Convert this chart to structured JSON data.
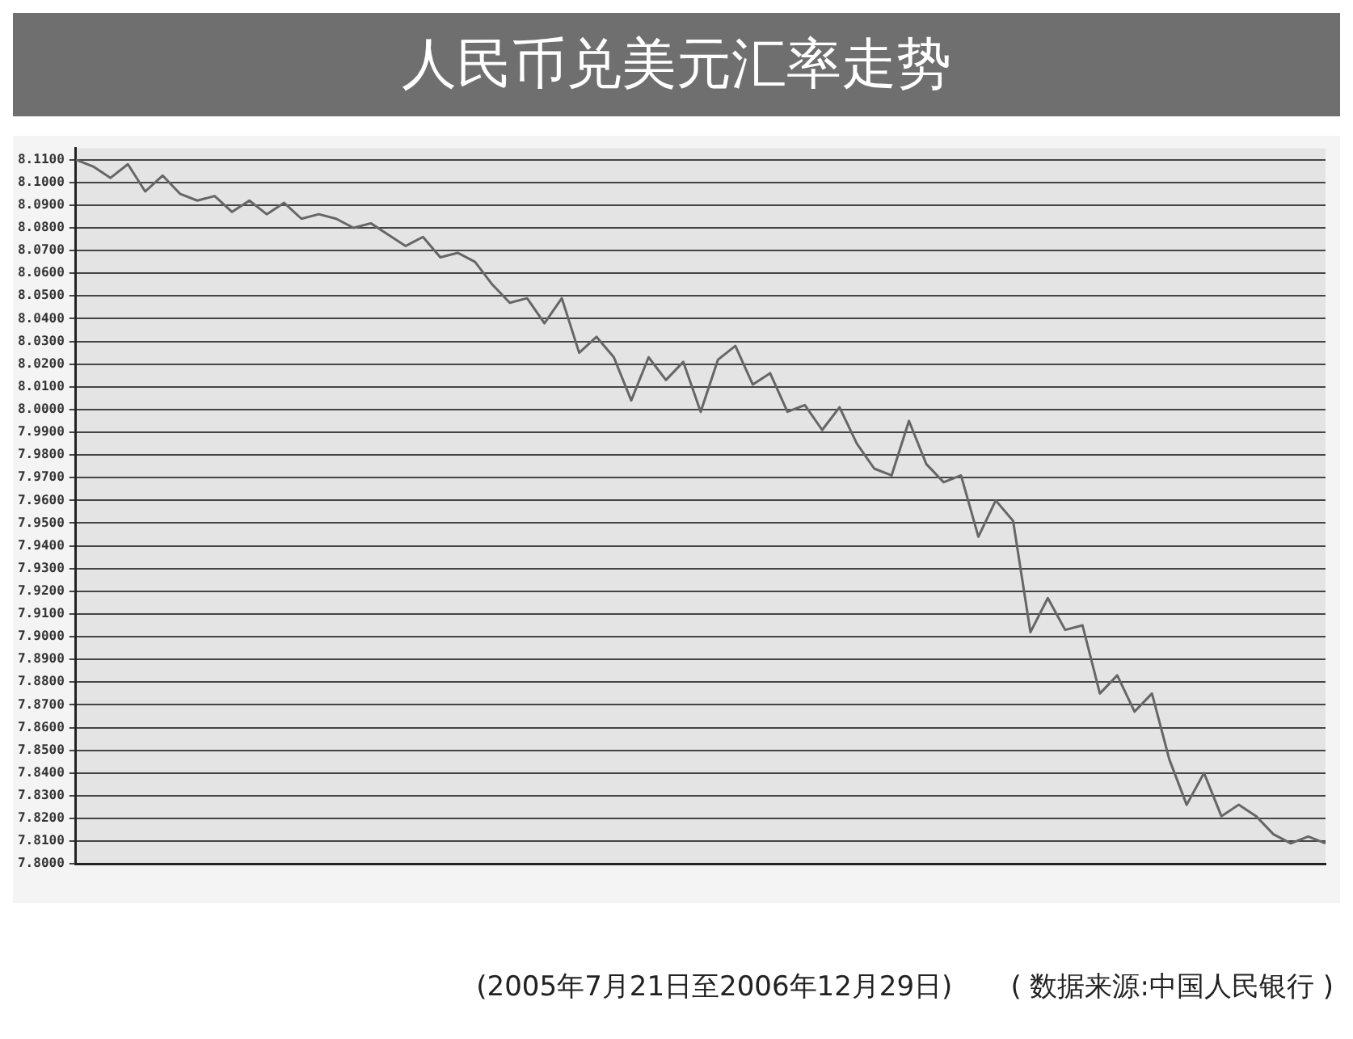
{
  "chart_data": {
    "type": "line",
    "title": "人民币兑美元汇率走势",
    "annotations": [
      "(2005年7月21日至2006年12月29日)",
      "( 数据来源:中国人民银行 )"
    ],
    "categories": [
      null,
      null,
      null,
      null,
      null,
      null,
      null,
      null,
      null,
      null,
      null,
      null,
      null,
      null,
      null,
      null,
      null,
      null,
      null,
      null,
      null,
      null,
      null,
      null,
      null,
      null,
      null,
      null,
      null,
      null,
      null,
      null,
      null,
      null,
      null,
      null,
      null,
      null,
      null,
      null,
      null,
      null,
      null,
      null,
      null,
      null,
      null,
      null,
      null,
      null,
      null,
      null,
      null,
      null,
      null,
      null,
      null,
      null,
      null,
      null,
      null,
      null,
      null,
      null,
      null,
      null,
      null,
      null,
      null,
      null,
      null,
      null,
      null
    ],
    "series": [
      {
        "color": "#666666",
        "values": [
          8.11,
          8.107,
          8.102,
          8.108,
          8.096,
          8.103,
          8.095,
          8.092,
          8.094,
          8.087,
          8.092,
          8.086,
          8.091,
          8.084,
          8.086,
          8.084,
          8.08,
          8.082,
          8.077,
          8.072,
          8.076,
          8.067,
          8.069,
          8.065,
          8.055,
          8.047,
          8.049,
          8.038,
          8.049,
          8.025,
          8.032,
          8.023,
          8.004,
          8.023,
          8.013,
          8.021,
          7.999,
          8.022,
          8.028,
          8.011,
          8.016,
          7.999,
          8.002,
          7.991,
          8.001,
          7.985,
          7.974,
          7.971,
          7.995,
          7.976,
          7.968,
          7.971,
          7.944,
          7.96,
          7.951,
          7.902,
          7.917,
          7.903,
          7.905,
          7.875,
          7.883,
          7.867,
          7.875,
          7.846,
          7.826,
          7.84,
          7.821,
          7.826,
          7.821,
          7.813,
          7.809,
          7.812,
          7.809
        ]
      }
    ],
    "ylim": [
      7.8,
      8.115
    ],
    "yticks": [
      {
        "value": 8.11,
        "label": "8.1100"
      },
      {
        "value": 8.1,
        "label": "8.1000"
      },
      {
        "value": 8.09,
        "label": "8.0900"
      },
      {
        "value": 8.08,
        "label": "8.0800"
      },
      {
        "value": 8.07,
        "label": "8.0700"
      },
      {
        "value": 8.06,
        "label": "8.0600"
      },
      {
        "value": 8.05,
        "label": "8.0500"
      },
      {
        "value": 8.04,
        "label": "8.0400"
      },
      {
        "value": 8.03,
        "label": "8.0300"
      },
      {
        "value": 8.02,
        "label": "8.0200"
      },
      {
        "value": 8.01,
        "label": "8.0100"
      },
      {
        "value": 8.0,
        "label": "8.0000"
      },
      {
        "value": 7.99,
        "label": "7.9900"
      },
      {
        "value": 7.98,
        "label": "7.9800"
      },
      {
        "value": 7.97,
        "label": "7.9700"
      },
      {
        "value": 7.96,
        "label": "7.9600"
      },
      {
        "value": 7.95,
        "label": "7.9500"
      },
      {
        "value": 7.94,
        "label": "7.9400"
      },
      {
        "value": 7.93,
        "label": "7.9300"
      },
      {
        "value": 7.92,
        "label": "7.9200"
      },
      {
        "value": 7.91,
        "label": "7.9100"
      },
      {
        "value": 7.9,
        "label": "7.9000"
      },
      {
        "value": 7.89,
        "label": "7.8900"
      },
      {
        "value": 7.88,
        "label": "7.8800"
      },
      {
        "value": 7.87,
        "label": "7.8700"
      },
      {
        "value": 7.86,
        "label": "7.8600"
      },
      {
        "value": 7.85,
        "label": "7.8500"
      },
      {
        "value": 7.84,
        "label": "7.8400"
      },
      {
        "value": 7.83,
        "label": "7.8300"
      },
      {
        "value": 7.82,
        "label": "7.8200"
      },
      {
        "value": 7.81,
        "label": "7.8100"
      },
      {
        "value": 7.8,
        "label": "7.8000"
      }
    ],
    "grid": "y",
    "legend": false,
    "marker": "none",
    "line_style": "solid"
  }
}
